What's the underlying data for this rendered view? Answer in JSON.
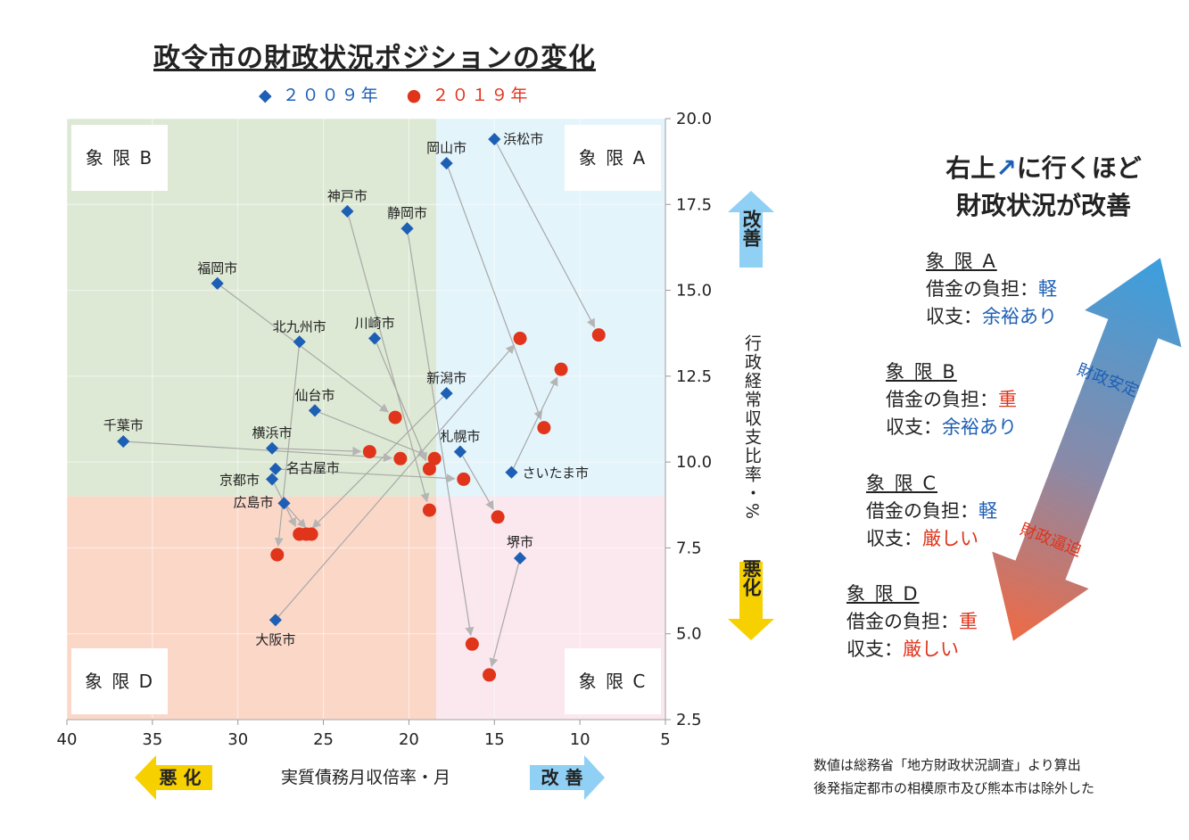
{
  "title": "政令市の財政状況ポジションの変化",
  "legend": {
    "y2009": "◆ ２００９年",
    "y2019": "● ２０１９年"
  },
  "colors": {
    "y2009": "#1d5fb4",
    "y2019": "#e0341b",
    "quadA": "#e3f4fb",
    "quadB": "#dde9d4",
    "quadC": "#fbe7ee",
    "quadD": "#fbd7c8"
  },
  "chart_data": {
    "type": "scatter",
    "xlabel": "実質債務月収倍率・月",
    "ylabel": "行政経常収支比率・%",
    "xlim": [
      40,
      5
    ],
    "ylim": [
      2.5,
      20.0
    ],
    "xticks": [
      "40",
      "35",
      "30",
      "25",
      "20",
      "15",
      "10",
      "5"
    ],
    "yticks": [
      "20.0",
      "17.5",
      "15.0",
      "12.5",
      "10.0",
      "7.5",
      "5.0",
      "2.5"
    ],
    "x_split": 18.4,
    "y_split": 9.0,
    "quadrants": {
      "A": "象 限 A",
      "B": "象 限 B",
      "C": "象 限 C",
      "D": "象 限 D"
    },
    "x_bad_label": "悪 化",
    "x_good_label": "改 善",
    "y_good_label": "改善",
    "y_bad_label": "悪化",
    "cities": [
      {
        "name": "浜松市",
        "x2009": 15.0,
        "y2009": 19.4,
        "x2019": 8.9,
        "y2019": 13.7
      },
      {
        "name": "岡山市",
        "x2009": 17.8,
        "y2009": 18.7,
        "x2019": 12.1,
        "y2019": 11.0
      },
      {
        "name": "神戸市",
        "x2009": 23.6,
        "y2009": 17.3,
        "x2019": 18.8,
        "y2019": 8.6
      },
      {
        "name": "静岡市",
        "x2009": 20.1,
        "y2009": 16.8,
        "x2019": 16.3,
        "y2019": 4.7
      },
      {
        "name": "福岡市",
        "x2009": 31.2,
        "y2009": 15.2,
        "x2019": 20.8,
        "y2019": 11.3
      },
      {
        "name": "北九州市",
        "x2009": 26.4,
        "y2009": 13.5,
        "x2019": 27.7,
        "y2019": 7.3
      },
      {
        "name": "川崎市",
        "x2009": 22.0,
        "y2009": 13.6,
        "x2019": 18.8,
        "y2019": 9.8
      },
      {
        "name": "新潟市",
        "x2009": 17.8,
        "y2009": 12.0,
        "x2019": 26.0,
        "y2019": 7.9
      },
      {
        "name": "仙台市",
        "x2009": 25.5,
        "y2009": 11.5,
        "x2019": 18.5,
        "y2019": 10.1
      },
      {
        "name": "千葉市",
        "x2009": 36.7,
        "y2009": 10.6,
        "x2019": 20.5,
        "y2019": 10.1
      },
      {
        "name": "札幌市",
        "x2009": 17.0,
        "y2009": 10.3,
        "x2019": 14.8,
        "y2019": 8.4
      },
      {
        "name": "横浜市",
        "x2009": 28.0,
        "y2009": 10.4,
        "x2019": 22.3,
        "y2019": 10.3
      },
      {
        "name": "さいたま市",
        "x2009": 14.0,
        "y2009": 9.7,
        "x2019": 11.1,
        "y2019": 12.7
      },
      {
        "name": "名古屋市",
        "x2009": 27.8,
        "y2009": 9.8,
        "x2019": 16.8,
        "y2019": 9.5
      },
      {
        "name": "京都市",
        "x2009": 28.0,
        "y2009": 9.5,
        "x2019": 26.4,
        "y2019": 7.9
      },
      {
        "name": "広島市",
        "x2009": 27.3,
        "y2009": 8.8,
        "x2019": 25.7,
        "y2019": 7.9
      },
      {
        "name": "堺市",
        "x2009": 13.5,
        "y2009": 7.2,
        "x2019": 15.3,
        "y2019": 3.8
      },
      {
        "name": "大阪市",
        "x2009": 27.8,
        "y2009": 5.4,
        "x2019": 13.5,
        "y2019": 13.6
      }
    ]
  },
  "side": {
    "title_line1": "右上",
    "title_arrow": "↗",
    "title_line1b": "に行くほど",
    "title_line2": "財政状況が改善",
    "quads": [
      {
        "name": "象 限 A",
        "debt_label": "借金の負担：",
        "debt": "軽",
        "debt_color": "blue",
        "bal_label": "収支：",
        "bal": "余裕あり",
        "bal_color": "blue"
      },
      {
        "name": "象 限 B",
        "debt_label": "借金の負担：",
        "debt": "重",
        "debt_color": "red",
        "bal_label": "収支：",
        "bal": "余裕あり",
        "bal_color": "blue"
      },
      {
        "name": "象 限 C",
        "debt_label": "借金の負担：",
        "debt": "軽",
        "debt_color": "blue",
        "bal_label": "収支：",
        "bal": "厳しい",
        "bal_color": "red"
      },
      {
        "name": "象 限 D",
        "debt_label": "借金の負担：",
        "debt": "重",
        "debt_color": "red",
        "bal_label": "収支：",
        "bal": "厳しい",
        "bal_color": "red"
      }
    ],
    "arrow_top_label": "財政安定",
    "arrow_bottom_label": "財政逼迫"
  },
  "note": {
    "line1": "数値は総務省「地方財政状況調査」より算出",
    "line2": "後発指定都市の相模原市及び熊本市は除外した"
  }
}
